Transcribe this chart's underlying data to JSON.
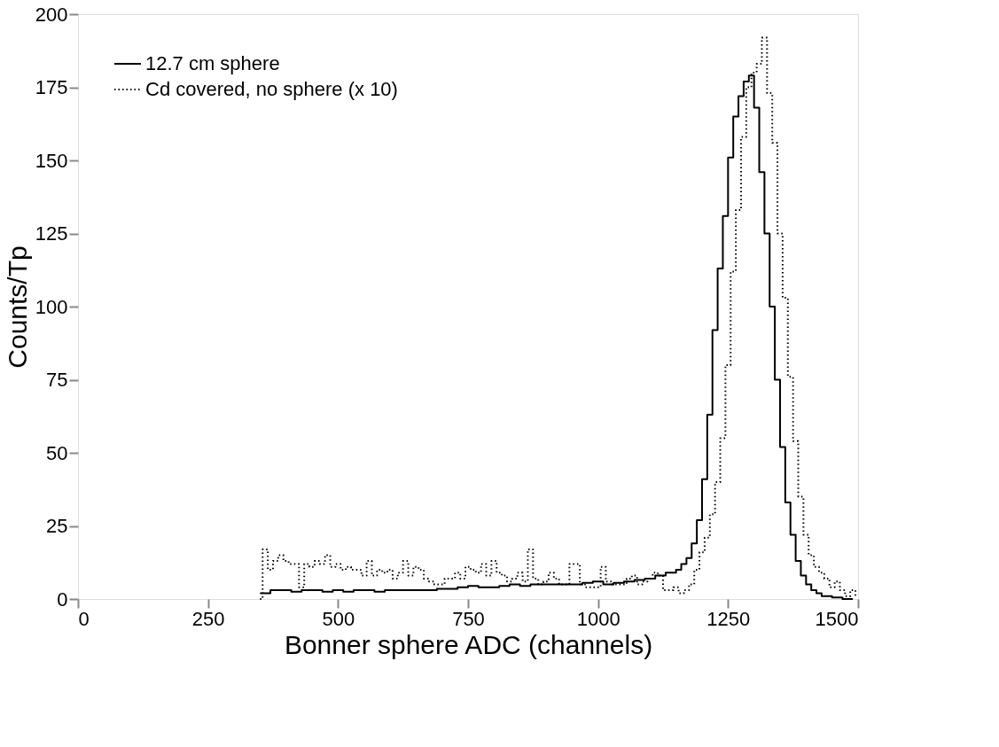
{
  "chart_data": {
    "type": "step",
    "xlabel": "Bonner sphere ADC (channels)",
    "ylabel": "Counts/Tp",
    "xlim": [
      0,
      1500
    ],
    "ylim": [
      0,
      200
    ],
    "xticks": [
      0,
      250,
      500,
      750,
      1000,
      1250,
      1500
    ],
    "yticks": [
      0,
      25,
      50,
      75,
      100,
      125,
      150,
      175,
      200
    ],
    "grid": false,
    "legend": "top left",
    "marker": "none",
    "series": [
      {
        "name": "12.7 cm sphere",
        "color": "#000000",
        "line_style": "solid",
        "x": [
          350,
          370,
          390,
          410,
          430,
          450,
          470,
          490,
          510,
          530,
          550,
          570,
          590,
          610,
          630,
          650,
          670,
          690,
          710,
          730,
          750,
          770,
          790,
          810,
          830,
          850,
          870,
          890,
          910,
          930,
          950,
          970,
          990,
          1010,
          1030,
          1050,
          1070,
          1090,
          1110,
          1130,
          1150,
          1160,
          1170,
          1180,
          1190,
          1200,
          1210,
          1220,
          1230,
          1240,
          1250,
          1260,
          1270,
          1280,
          1290,
          1300,
          1310,
          1320,
          1330,
          1340,
          1350,
          1360,
          1370,
          1380,
          1390,
          1400,
          1410,
          1420,
          1430,
          1450,
          1470,
          1490
        ],
        "values": [
          2,
          3,
          3,
          2.5,
          3,
          3,
          2.5,
          3,
          2.5,
          3,
          3,
          2.5,
          3,
          3,
          3,
          3,
          3,
          3.5,
          3.5,
          4,
          4.5,
          4,
          4,
          4.5,
          5,
          4.5,
          5,
          5,
          5,
          5,
          5,
          5.5,
          6,
          5,
          5.5,
          6,
          6.5,
          7,
          8,
          9,
          10,
          12,
          14,
          19,
          27,
          41,
          63,
          92,
          113,
          131,
          151,
          165,
          172,
          177,
          179,
          168,
          146,
          125,
          100,
          75,
          52,
          33,
          22,
          13,
          8,
          5,
          3,
          2,
          1,
          0.5,
          0,
          0
        ]
      },
      {
        "name": "Cd covered, no sphere (x 10)",
        "color": "#000000",
        "line_style": "dotted",
        "x": [
          350,
          355,
          365,
          375,
          385,
          395,
          405,
          415,
          425,
          435,
          445,
          455,
          465,
          475,
          485,
          495,
          505,
          515,
          525,
          535,
          545,
          555,
          565,
          575,
          585,
          595,
          605,
          615,
          625,
          635,
          645,
          655,
          665,
          675,
          685,
          695,
          705,
          715,
          725,
          735,
          745,
          755,
          765,
          775,
          785,
          795,
          805,
          815,
          825,
          835,
          845,
          855,
          865,
          875,
          885,
          895,
          905,
          915,
          925,
          935,
          945,
          955,
          965,
          975,
          985,
          995,
          1005,
          1015,
          1025,
          1035,
          1045,
          1055,
          1065,
          1075,
          1085,
          1095,
          1105,
          1115,
          1125,
          1135,
          1145,
          1155,
          1165,
          1175,
          1185,
          1195,
          1205,
          1215,
          1225,
          1235,
          1245,
          1255,
          1265,
          1275,
          1285,
          1295,
          1305,
          1315,
          1325,
          1335,
          1345,
          1355,
          1365,
          1375,
          1385,
          1395,
          1405,
          1415,
          1425,
          1435,
          1445,
          1455,
          1465,
          1475,
          1485,
          1495
        ],
        "values": [
          0,
          17,
          10,
          13,
          15,
          13,
          12,
          12,
          4,
          12,
          11,
          13,
          12,
          15,
          11,
          12,
          10,
          11,
          10,
          10,
          8,
          13,
          8,
          10,
          9,
          10,
          7,
          9,
          13,
          8,
          11,
          10,
          7,
          6,
          5,
          5,
          7,
          7,
          9,
          7,
          11,
          10,
          9,
          12,
          8,
          13,
          9,
          8,
          6,
          7,
          9,
          6,
          17,
          7,
          5,
          6,
          9,
          7,
          5,
          5,
          12,
          12,
          5,
          4,
          4,
          4,
          11,
          6,
          5,
          5,
          5,
          7,
          8,
          5,
          6,
          7,
          9,
          8,
          3,
          3,
          4,
          2,
          3,
          5,
          10,
          16,
          21,
          29,
          40,
          55,
          80,
          112,
          133,
          158,
          175,
          180,
          183,
          192,
          173,
          156,
          125,
          103,
          76,
          54,
          35,
          22,
          15,
          11,
          9,
          7,
          4,
          6,
          3,
          1,
          3,
          1
        ]
      }
    ]
  }
}
